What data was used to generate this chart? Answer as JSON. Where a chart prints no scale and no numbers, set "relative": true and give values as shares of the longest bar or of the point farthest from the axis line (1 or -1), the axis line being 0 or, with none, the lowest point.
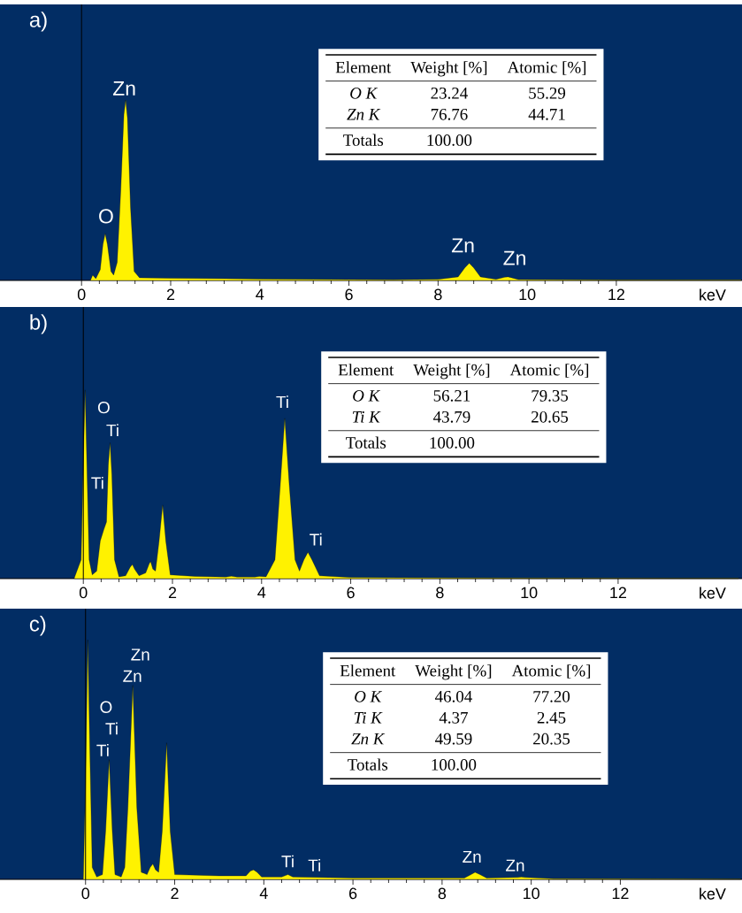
{
  "chart_data": [
    {
      "type": "area",
      "title": "a)",
      "xlabel": "keV",
      "relative": true,
      "color": "#fff200",
      "xlim": [
        -1.83,
        14.82
      ],
      "xticks": [
        0,
        2,
        4,
        6,
        8,
        10,
        12
      ],
      "x": [
        0.2,
        0.25,
        0.32,
        0.42,
        0.48,
        0.53,
        0.58,
        0.66,
        0.72,
        0.8,
        0.88,
        0.95,
        0.99,
        1.03,
        1.1,
        1.18,
        1.3,
        2,
        4,
        6,
        7,
        8,
        8.45,
        8.6,
        8.7,
        8.8,
        8.95,
        9.3,
        9.5,
        9.57,
        9.65,
        9.8,
        12,
        14.8
      ],
      "values": [
        0,
        0.03,
        0.01,
        0.06,
        0.2,
        0.26,
        0.2,
        0.05,
        0.03,
        0.1,
        0.5,
        0.92,
        1.0,
        0.9,
        0.4,
        0.05,
        0.015,
        0.012,
        0.008,
        0.005,
        0.004,
        0.006,
        0.02,
        0.07,
        0.096,
        0.07,
        0.02,
        0.006,
        0.018,
        0.02,
        0.015,
        0.005,
        0.003,
        0.002
      ],
      "annotations": [
        "O",
        "Zn",
        "Zn",
        "Zn"
      ]
    },
    {
      "type": "other",
      "categories": [
        "Element",
        "Weight [%]",
        "Atomic [%]"
      ],
      "y_categories": [
        "O K",
        "Zn K",
        "Totals"
      ],
      "cell_labels": [
        [
          "23.24",
          "55.29"
        ],
        [
          "76.76",
          "44.71"
        ],
        [
          "100.00",
          null
        ]
      ]
    },
    {
      "type": "area",
      "title": "b)",
      "xlabel": "keV",
      "relative": true,
      "color": "#fff200",
      "xlim": [
        -1.87,
        14.78
      ],
      "xticks": [
        0,
        2,
        4,
        6,
        8,
        10,
        12
      ],
      "x": [
        -0.2,
        -0.05,
        0.0,
        0.04,
        0.08,
        0.13,
        0.2,
        0.3,
        0.38,
        0.46,
        0.52,
        0.56,
        0.6,
        0.64,
        0.7,
        0.8,
        0.95,
        1.05,
        1.1,
        1.15,
        1.25,
        1.4,
        1.48,
        1.51,
        1.56,
        1.62,
        1.7,
        1.78,
        1.85,
        1.95,
        2.5,
        3.2,
        3.32,
        3.45,
        3.85,
        3.95,
        4.1,
        4.3,
        4.42,
        4.52,
        4.62,
        4.75,
        4.85,
        4.95,
        5.04,
        5.13,
        5.3,
        6,
        8,
        10,
        14.7
      ],
      "values": [
        0.005,
        0.1,
        0.6,
        1.0,
        0.6,
        0.1,
        0.02,
        0.04,
        0.2,
        0.26,
        0.3,
        0.6,
        0.72,
        0.55,
        0.1,
        0.01,
        0.015,
        0.06,
        0.075,
        0.05,
        0.015,
        0.03,
        0.08,
        0.09,
        0.05,
        0.04,
        0.2,
        0.39,
        0.2,
        0.02,
        0.012,
        0.008,
        0.013,
        0.008,
        0.008,
        0.012,
        0.01,
        0.1,
        0.5,
        0.85,
        0.5,
        0.1,
        0.04,
        0.1,
        0.14,
        0.1,
        0.015,
        0.006,
        0.004,
        0.002,
        0.001
      ],
      "annotations": [
        "O",
        "Ti",
        "Ti",
        "Ti",
        "Ti"
      ]
    },
    {
      "type": "other",
      "categories": [
        "Element",
        "Weight [%]",
        "Atomic [%]"
      ],
      "y_categories": [
        "O K",
        "Ti K",
        "Totals"
      ],
      "cell_labels": [
        [
          "56.21",
          "79.35"
        ],
        [
          "43.79",
          "20.65"
        ],
        [
          "100.00",
          null
        ]
      ]
    },
    {
      "type": "area",
      "title": "c)",
      "xlabel": "keV",
      "relative": true,
      "color": "#fff200",
      "xlim": [
        -1.92,
        14.73
      ],
      "xticks": [
        0,
        2,
        4,
        6,
        8,
        10,
        12
      ],
      "x": [
        -0.05,
        0.0,
        0.05,
        0.1,
        0.15,
        0.25,
        0.38,
        0.45,
        0.53,
        0.6,
        0.66,
        0.8,
        0.88,
        0.95,
        1.06,
        1.15,
        1.25,
        1.32,
        1.38,
        1.45,
        1.51,
        1.57,
        1.64,
        1.72,
        1.82,
        1.9,
        2.0,
        3,
        3.6,
        3.7,
        3.77,
        3.85,
        3.95,
        4.4,
        4.54,
        4.65,
        6,
        8.5,
        8.65,
        8.74,
        8.85,
        9,
        9.7,
        9.78,
        9.86,
        10.5,
        14.7
      ],
      "values": [
        0,
        0.4,
        1.0,
        0.5,
        0.05,
        0.01,
        0.02,
        0.2,
        0.5,
        0.2,
        0.02,
        0.01,
        0.05,
        0.3,
        0.81,
        0.3,
        0.03,
        0.025,
        0.02,
        0.05,
        0.065,
        0.04,
        0.03,
        0.2,
        0.57,
        0.2,
        0.02,
        0.015,
        0.015,
        0.035,
        0.04,
        0.03,
        0.01,
        0.01,
        0.02,
        0.01,
        0.006,
        0.006,
        0.02,
        0.03,
        0.02,
        0.006,
        0.008,
        0.01,
        0.008,
        0.003,
        0.001
      ],
      "annotations": [
        "Zn",
        "Zn",
        "O",
        "Ti",
        "Ti",
        "Ti",
        "Ti",
        "Zn",
        "Zn"
      ]
    },
    {
      "type": "other",
      "categories": [
        "Element",
        "Weight [%]",
        "Atomic [%]"
      ],
      "y_categories": [
        "O K",
        "Ti K",
        "Zn K",
        "Totals"
      ],
      "cell_labels": [
        [
          "46.04",
          "77.20"
        ],
        [
          "4.37",
          "2.45"
        ],
        [
          "49.59",
          "20.35"
        ],
        [
          "100.00",
          null
        ]
      ]
    }
  ]
}
